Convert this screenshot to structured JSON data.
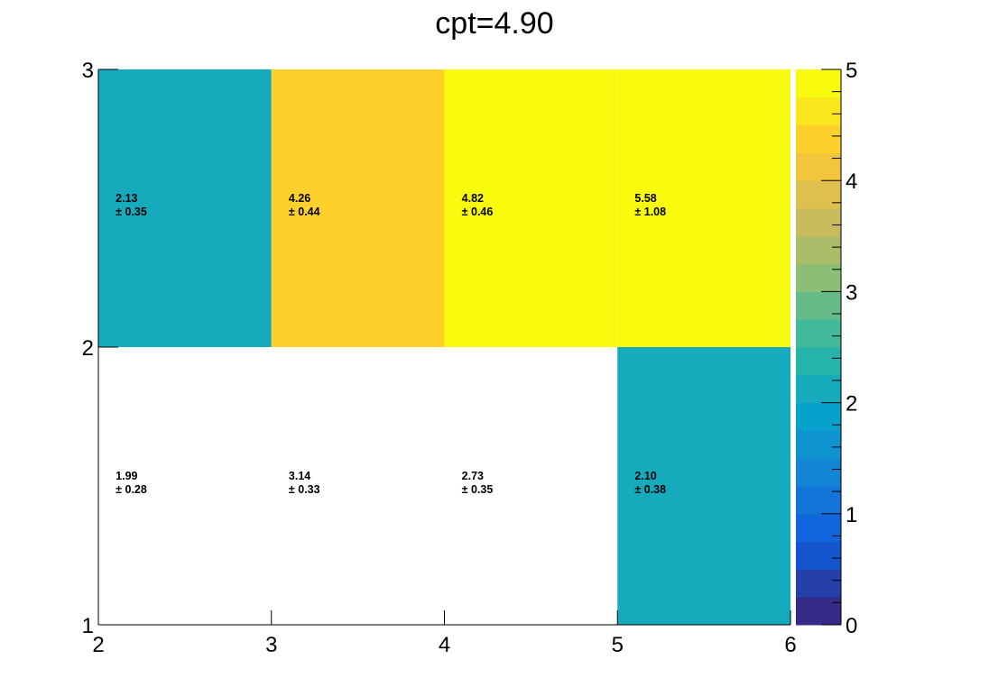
{
  "chart_data": {
    "type": "heatmap",
    "title": "cpt=4.90",
    "xlabel": "",
    "ylabel": "",
    "x_edges": [
      2,
      3,
      4,
      5,
      6
    ],
    "y_edges": [
      1,
      2,
      3
    ],
    "xlim": [
      2,
      6
    ],
    "ylim": [
      1,
      3
    ],
    "x_tick_labels": [
      "2",
      "3",
      "4",
      "5",
      "6"
    ],
    "y_tick_labels": [
      "1",
      "2",
      "3"
    ],
    "zlim": [
      0,
      5
    ],
    "z_tick_labels": [
      "0",
      "1",
      "2",
      "3",
      "4",
      "5"
    ],
    "palette": "kBird",
    "color_levels": 20,
    "cells": [
      {
        "x_bin": 0,
        "y_bin": 0,
        "value": 1.99,
        "error": 0.28,
        "filled": false,
        "value_text": "1.99",
        "error_text": "± 0.28"
      },
      {
        "x_bin": 1,
        "y_bin": 0,
        "value": 3.14,
        "error": 0.33,
        "filled": false,
        "value_text": "3.14",
        "error_text": "± 0.33"
      },
      {
        "x_bin": 2,
        "y_bin": 0,
        "value": 2.73,
        "error": 0.35,
        "filled": false,
        "value_text": "2.73",
        "error_text": "± 0.35"
      },
      {
        "x_bin": 3,
        "y_bin": 0,
        "value": 2.1,
        "error": 0.38,
        "filled": true,
        "value_text": "2.10",
        "error_text": "± 0.38"
      },
      {
        "x_bin": 0,
        "y_bin": 1,
        "value": 2.13,
        "error": 0.35,
        "filled": true,
        "value_text": "2.13",
        "error_text": "± 0.35"
      },
      {
        "x_bin": 1,
        "y_bin": 1,
        "value": 4.26,
        "error": 0.44,
        "filled": true,
        "value_text": "4.26",
        "error_text": "± 0.44"
      },
      {
        "x_bin": 2,
        "y_bin": 1,
        "value": 4.82,
        "error": 0.46,
        "filled": true,
        "value_text": "4.82",
        "error_text": "± 0.46"
      },
      {
        "x_bin": 3,
        "y_bin": 1,
        "value": 5.58,
        "error": 1.08,
        "filled": true,
        "value_text": "5.58",
        "error_text": "± 1.08"
      }
    ]
  },
  "colors": {
    "background": "#ffffff",
    "axis": "#000000",
    "palette_stops": [
      "#352a87",
      "#0f5cdd",
      "#1481d6",
      "#06a4ca",
      "#2eb7a4",
      "#87bf77",
      "#d1bb59",
      "#fec832",
      "#f9fb0e"
    ]
  }
}
